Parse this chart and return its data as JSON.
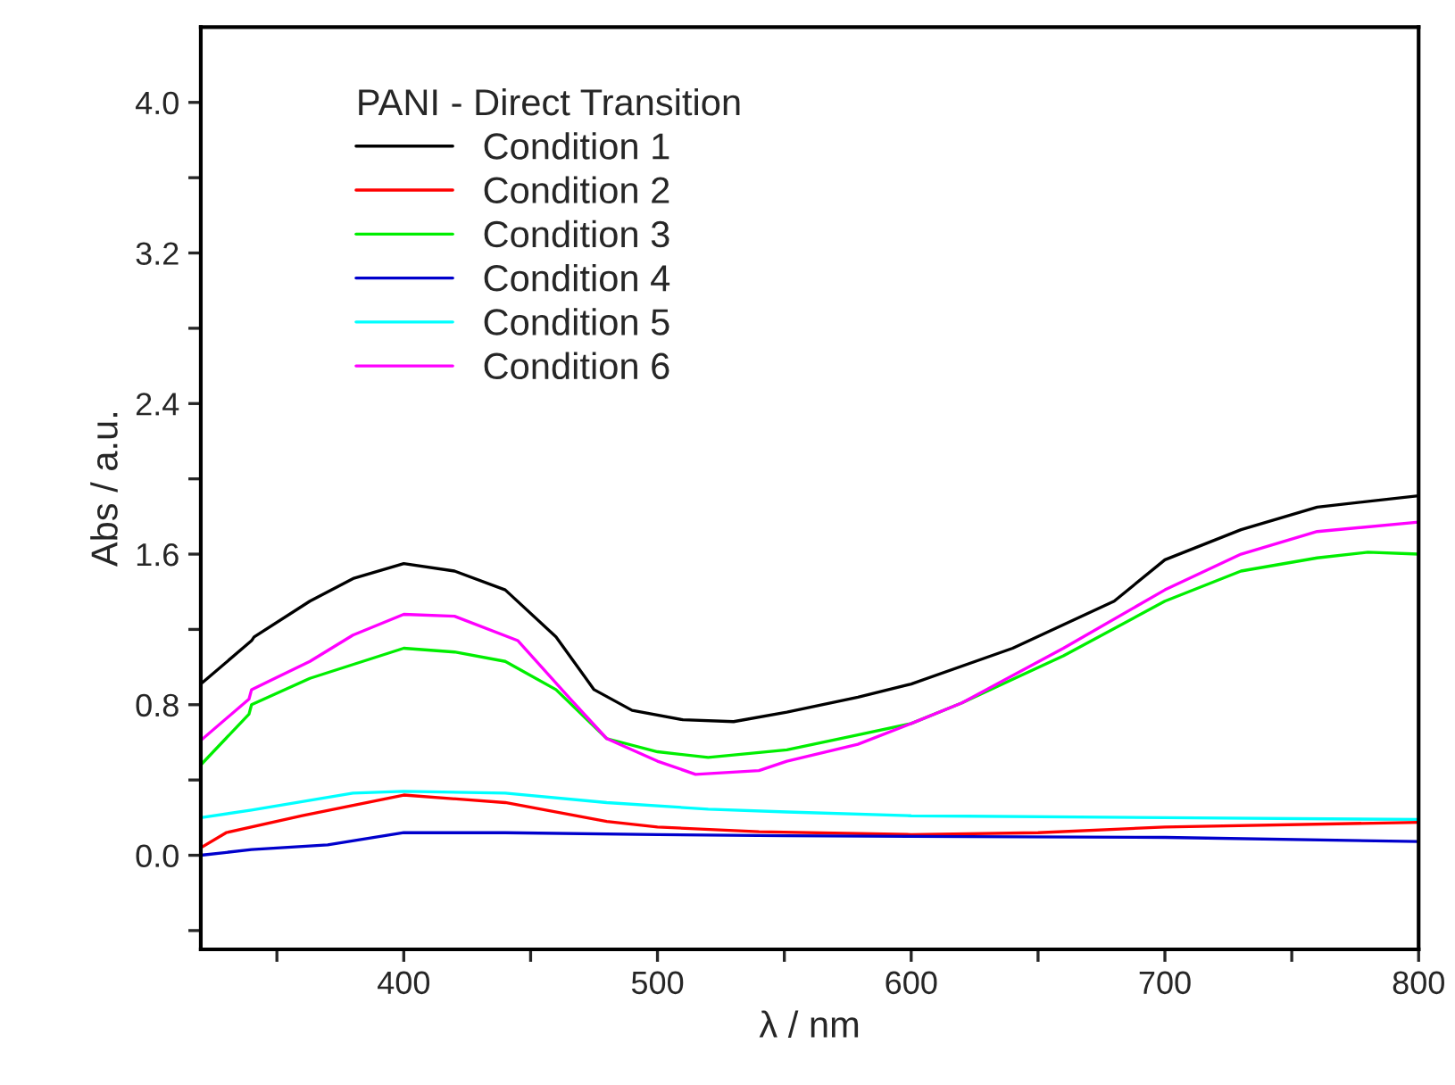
{
  "chart_data": {
    "type": "line",
    "xlabel": "λ / nm",
    "ylabel": "Abs / a.u.",
    "legend_title": "PANI - Direct Transition",
    "legend": "top left",
    "grid": false,
    "marker": "none",
    "line_style": "solid",
    "xlim": [
      320,
      800
    ],
    "ylim": [
      -0.5,
      4.4
    ],
    "xticks": [
      {
        "value": 350,
        "label": null
      },
      400,
      {
        "value": 450,
        "label": null
      },
      500,
      {
        "value": 550,
        "label": null
      },
      600,
      {
        "value": 650,
        "label": null
      },
      700,
      {
        "value": 750,
        "label": null
      },
      800
    ],
    "yticks": [
      {
        "value": -0.4,
        "label": null
      },
      {
        "value": 0,
        "label": "0.0"
      },
      {
        "value": 0.4,
        "label": null
      },
      0.8,
      {
        "value": 1.2,
        "label": null
      },
      1.6,
      {
        "value": 2.0,
        "label": null
      },
      2.4,
      {
        "value": 2.8,
        "label": null
      },
      3.2,
      {
        "value": 3.6,
        "label": null
      },
      {
        "value": 4.0,
        "label": "4.0"
      }
    ],
    "series": [
      {
        "name": "Condition 1",
        "color": "#000000",
        "x": [
          320,
          340,
          341,
          363,
          380,
          400,
          420,
          440,
          460,
          475,
          490,
          510,
          530,
          551,
          579,
          600,
          640,
          680,
          700,
          730,
          760,
          800
        ],
        "values": [
          0.91,
          1.14,
          1.16,
          1.35,
          1.47,
          1.55,
          1.51,
          1.41,
          1.16,
          0.88,
          0.77,
          0.72,
          0.71,
          0.76,
          0.84,
          0.91,
          1.1,
          1.35,
          1.57,
          1.73,
          1.85,
          1.91
        ]
      },
      {
        "name": "Condition 2",
        "color": "#ff0000",
        "x": [
          320,
          330,
          360,
          400,
          440,
          480,
          500,
          540,
          600,
          650,
          700,
          800
        ],
        "values": [
          0.04,
          0.12,
          0.21,
          0.32,
          0.28,
          0.18,
          0.15,
          0.125,
          0.11,
          0.12,
          0.15,
          0.175
        ]
      },
      {
        "name": "Condition 3",
        "color": "#00ee00",
        "x": [
          320,
          339,
          340,
          363,
          400,
          420,
          440,
          460,
          480,
          500,
          520,
          551,
          579,
          600,
          620,
          660,
          700,
          730,
          760,
          780,
          800
        ],
        "values": [
          0.48,
          0.75,
          0.8,
          0.94,
          1.1,
          1.08,
          1.03,
          0.88,
          0.62,
          0.55,
          0.52,
          0.56,
          0.64,
          0.7,
          0.81,
          1.06,
          1.35,
          1.51,
          1.58,
          1.61,
          1.6
        ]
      },
      {
        "name": "Condition 4",
        "color": "#0000cc",
        "x": [
          320,
          340,
          370,
          400,
          440,
          500,
          550,
          600,
          700,
          800
        ],
        "values": [
          0.0,
          0.03,
          0.055,
          0.12,
          0.12,
          0.11,
          0.104,
          0.1,
          0.095,
          0.073
        ]
      },
      {
        "name": "Condition 5",
        "color": "#00ffff",
        "x": [
          320,
          340,
          380,
          400,
          440,
          480,
          520,
          551,
          600,
          700,
          800
        ],
        "values": [
          0.2,
          0.24,
          0.33,
          0.34,
          0.33,
          0.28,
          0.245,
          0.23,
          0.21,
          0.2,
          0.19
        ]
      },
      {
        "name": "Condition 6",
        "color": "#ff00ff",
        "x": [
          320,
          339,
          340,
          363,
          380,
          400,
          420,
          445,
          465,
          480,
          500,
          515,
          540,
          551,
          579,
          600,
          620,
          660,
          700,
          730,
          760,
          800
        ],
        "values": [
          0.61,
          0.83,
          0.88,
          1.03,
          1.17,
          1.28,
          1.27,
          1.14,
          0.84,
          0.62,
          0.5,
          0.43,
          0.45,
          0.5,
          0.59,
          0.7,
          0.81,
          1.1,
          1.41,
          1.6,
          1.72,
          1.77
        ]
      }
    ]
  }
}
